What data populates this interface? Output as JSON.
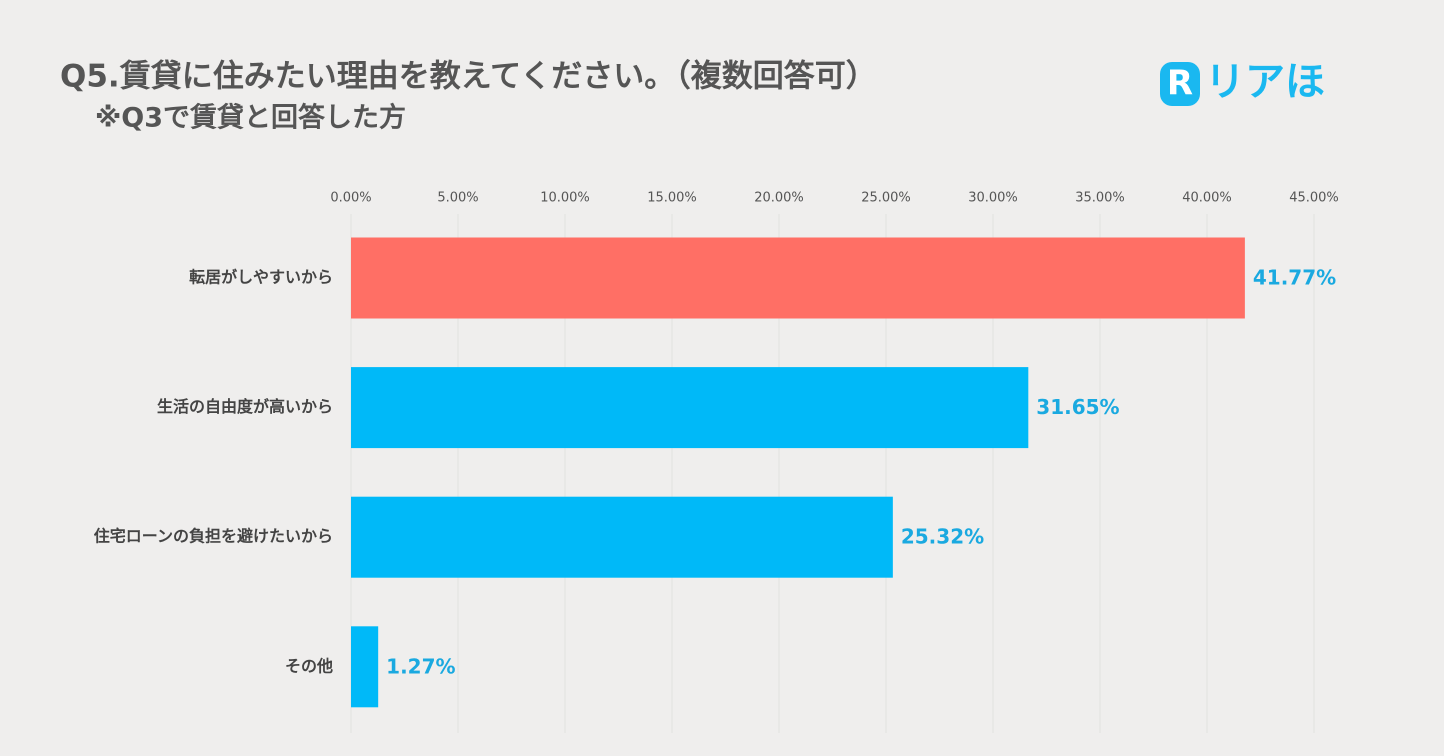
{
  "brand": {
    "mark": "R",
    "name": "リアほ"
  },
  "chart_data": {
    "type": "hbar",
    "title": "Q5.賃貸に住みたい理由を教えてください。（複数回答可）",
    "subtitle": "※Q3で賃貸と回答した方",
    "categories": [
      "転居がしやすいから",
      "生活の自由度が高いから",
      "住宅ローンの負担を避けたいから",
      "その他"
    ],
    "values": [
      41.77,
      31.65,
      25.32,
      1.27
    ],
    "value_labels": [
      "41.77%",
      "31.65%",
      "25.32%",
      "1.27%"
    ],
    "colors": [
      "#ff6f65",
      "#00b9f8",
      "#00b9f8",
      "#00b9f8"
    ],
    "label_color": "#1aa9e0",
    "xlim": [
      0,
      45
    ],
    "xticks": [
      {
        "value": 0,
        "label": "0.00%"
      },
      {
        "value": 5,
        "label": "5.00%"
      },
      {
        "value": 10,
        "label": "10.00%"
      },
      {
        "value": 15,
        "label": "15.00%"
      },
      {
        "value": 20,
        "label": "20.00%"
      },
      {
        "value": 25,
        "label": "25.00%"
      },
      {
        "value": 30,
        "label": "30.00%"
      },
      {
        "value": 35,
        "label": "35.00%"
      },
      {
        "value": 40,
        "label": "40.00%"
      },
      {
        "value": 45,
        "label": "45.00%"
      }
    ],
    "grid": true
  }
}
